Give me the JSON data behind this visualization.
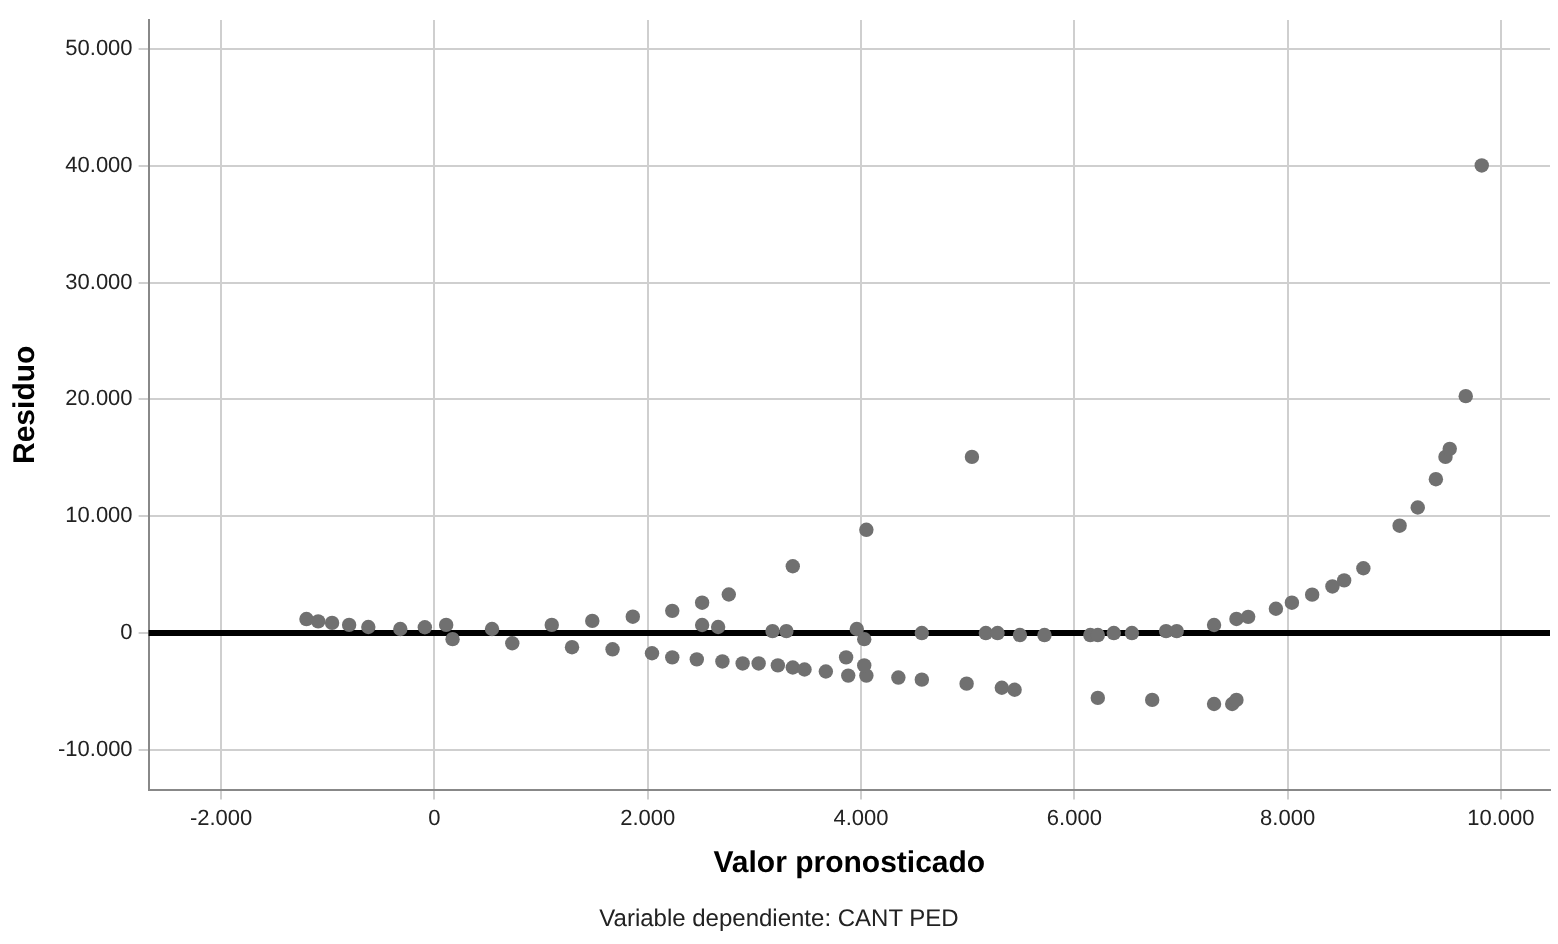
{
  "chart_data": {
    "type": "scatter",
    "xlabel": "Valor pronosticado",
    "ylabel": "Residuo",
    "annotations": [
      "Variable dependiente: CANT PED"
    ],
    "x": [
      -1200,
      -1090,
      -960,
      -800,
      -620,
      -320,
      -90,
      110,
      540,
      1100,
      1480,
      1860,
      2230,
      2510,
      2760,
      170,
      730,
      1290,
      1670,
      2040,
      2230,
      2460,
      2700,
      2890,
      3040,
      3220,
      3360,
      3470,
      3670,
      3860,
      3880,
      4050,
      4030,
      4350,
      4570,
      4990,
      5320,
      5440,
      2510,
      2660,
      3170,
      3300,
      3960,
      4030,
      4570,
      5170,
      5280,
      5490,
      5720,
      6150,
      6220,
      6370,
      3360,
      4050,
      5040,
      6220,
      6730,
      7310,
      7480,
      7520,
      6540,
      6860,
      6960,
      7310,
      7520,
      7630,
      7890,
      8040,
      8230,
      8420,
      8530,
      8710,
      9050,
      9220,
      9390,
      9480,
      9520,
      9670,
      9820
    ],
    "series": [
      {
        "color": "#707070",
        "values": [
          1200,
          1000,
          870,
          700,
          520,
          350,
          500,
          700,
          350,
          700,
          1040,
          1400,
          1900,
          2600,
          3300,
          -520,
          -870,
          -1210,
          -1390,
          -1730,
          -2080,
          -2250,
          -2430,
          -2600,
          -2600,
          -2770,
          -2950,
          -3120,
          -3290,
          -2080,
          -3640,
          -3640,
          -2770,
          -3810,
          -3990,
          -4330,
          -4680,
          -4850,
          690,
          520,
          170,
          170,
          350,
          -520,
          0,
          0,
          0,
          -170,
          -170,
          -170,
          -170,
          0,
          5720,
          8840,
          15080,
          -5550,
          -5720,
          -6070,
          -6070,
          -5720,
          0,
          170,
          170,
          690,
          1210,
          1390,
          2080,
          2600,
          3290,
          3990,
          4510,
          5550,
          9190,
          10750,
          13170,
          15080,
          15770,
          20280,
          40030
        ]
      }
    ],
    "marker": "circle",
    "grid": true,
    "xlim": [
      -2680,
      10460
    ],
    "ylim": [
      -13400,
      52480
    ],
    "xticks": [
      {
        "value": -2000,
        "label": "-2.000"
      },
      {
        "value": 0,
        "label": "0"
      },
      {
        "value": 2000,
        "label": "2.000"
      },
      {
        "value": 4000,
        "label": "4.000"
      },
      {
        "value": 6000,
        "label": "6.000"
      },
      {
        "value": 8000,
        "label": "8.000"
      },
      {
        "value": 10000,
        "label": "10.000"
      }
    ],
    "yticks": [
      {
        "value": -10000,
        "label": "-10.000"
      },
      {
        "value": 0,
        "label": "0"
      },
      {
        "value": 10000,
        "label": "10.000"
      },
      {
        "value": 20000,
        "label": "20.000"
      },
      {
        "value": 30000,
        "label": "30.000"
      },
      {
        "value": 40000,
        "label": "40.000"
      },
      {
        "value": 50000,
        "label": "50.000"
      }
    ],
    "ref_lines": [
      {
        "axis": "y",
        "value": 0,
        "color": "#000000"
      }
    ]
  }
}
